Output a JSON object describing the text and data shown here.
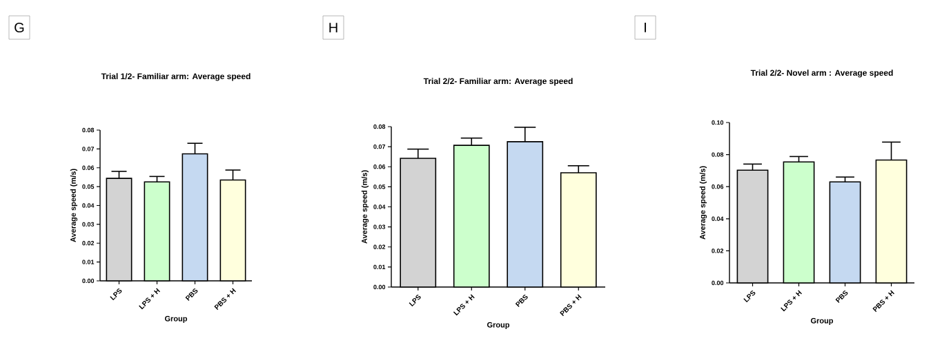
{
  "chart_data": [
    {
      "type": "bar",
      "title": "Trial 1/2- Familiar arm: Average speed",
      "xlabel": "Group",
      "ylabel": "Average speed (m/s)",
      "annotations": [
        "G"
      ],
      "categories": [
        "LPS",
        "LPS + H",
        "PBS",
        "PBS + H"
      ],
      "values": [
        0.0544,
        0.0525,
        0.0674,
        0.0535
      ],
      "colors": [
        "#d3d3d3",
        "#ccffcc",
        "#c5d9f1",
        "#ffffdd"
      ],
      "errors": [
        [
          0.0544,
          0.0581
        ],
        [
          0.0525,
          0.0554
        ],
        [
          0.0674,
          0.073
        ],
        [
          0.0535,
          0.0588
        ]
      ],
      "ylim": [
        0,
        0.08
      ],
      "yticks": [
        {
          "value": 0,
          "label": "0.00"
        },
        {
          "value": 0.01,
          "label": "0.01"
        },
        {
          "value": 0.02,
          "label": "0.02"
        },
        {
          "value": 0.03,
          "label": "0.03"
        },
        {
          "value": 0.04,
          "label": "0.04"
        },
        {
          "value": 0.05,
          "label": "0.05"
        },
        {
          "value": 0.06,
          "label": "0.06"
        },
        {
          "value": 0.07,
          "label": "0.07"
        },
        {
          "value": 0.08,
          "label": "0.08"
        }
      ]
    },
    {
      "type": "bar",
      "title": "Trial 2/2- Familiar arm: Average speed",
      "xlabel": "Group",
      "ylabel": "Average speed (m/s)",
      "annotations": [
        "H"
      ],
      "categories": [
        "LPS",
        "LPS + H",
        "PBS",
        "PBS + H"
      ],
      "values": [
        0.0642,
        0.0707,
        0.0725,
        0.057
      ],
      "colors": [
        "#d3d3d3",
        "#ccffcc",
        "#c5d9f1",
        "#ffffdd"
      ],
      "errors": [
        [
          0.0642,
          0.0688
        ],
        [
          0.0707,
          0.0743
        ],
        [
          0.0725,
          0.0797
        ],
        [
          0.057,
          0.0605
        ]
      ],
      "ylim": [
        0,
        0.08
      ],
      "yticks": [
        {
          "value": 0,
          "label": "0.00"
        },
        {
          "value": 0.01,
          "label": "0.01"
        },
        {
          "value": 0.02,
          "label": "0.02"
        },
        {
          "value": 0.03,
          "label": "0.03"
        },
        {
          "value": 0.04,
          "label": "0.04"
        },
        {
          "value": 0.05,
          "label": "0.05"
        },
        {
          "value": 0.06,
          "label": "0.06"
        },
        {
          "value": 0.07,
          "label": "0.07"
        },
        {
          "value": 0.08,
          "label": "0.08"
        }
      ]
    },
    {
      "type": "bar",
      "title": "Trial 2/2- Novel arm : Average speed",
      "xlabel": "Group",
      "ylabel": "Average speed (m/s)",
      "annotations": [
        "I"
      ],
      "categories": [
        "LPS",
        "LPS + H",
        "PBS",
        "PBS + H"
      ],
      "values": [
        0.0703,
        0.0754,
        0.063,
        0.0766
      ],
      "colors": [
        "#d3d3d3",
        "#ccffcc",
        "#c5d9f1",
        "#ffffdd"
      ],
      "errors": [
        [
          0.0703,
          0.0741
        ],
        [
          0.0754,
          0.0788
        ],
        [
          0.063,
          0.066
        ],
        [
          0.0766,
          0.0878
        ]
      ],
      "ylim": [
        0,
        0.1
      ],
      "yticks": [
        {
          "value": 0,
          "label": "0.00"
        },
        {
          "value": 0.02,
          "label": "0.02"
        },
        {
          "value": 0.04,
          "label": "0.04"
        },
        {
          "value": 0.06,
          "label": "0.06"
        },
        {
          "value": 0.08,
          "label": "0.08"
        },
        {
          "value": 0.1,
          "label": "0.10"
        }
      ]
    }
  ]
}
